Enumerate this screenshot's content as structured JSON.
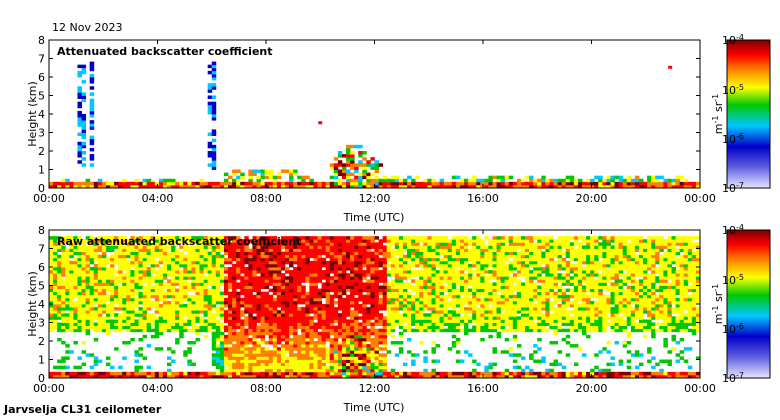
{
  "date": "12 Nov 2023",
  "station": "Jarvselja CL31 ceilometer",
  "colors": {
    "scale": [
      "#c8c8f0",
      "#0000c8",
      "#00c8ff",
      "#00c800",
      "#ffff00",
      "#ff8000",
      "#ff0000",
      "#780000"
    ]
  },
  "chart_data": [
    {
      "type": "heatmap",
      "title": "Attenuated backscatter coefficient",
      "xlabel": "Time (UTC)",
      "ylabel": "Height (km)",
      "xlim": [
        0,
        24
      ],
      "ylim": [
        0,
        8
      ],
      "x_ticks": [
        "00:00",
        "04:00",
        "08:00",
        "12:00",
        "16:00",
        "20:00",
        "00:00"
      ],
      "y_ticks": [
        "0",
        "1",
        "2",
        "3",
        "4",
        "5",
        "6",
        "7",
        "8"
      ],
      "colorbar": {
        "label": "m-1 sr-1",
        "label_base": "m",
        "label_exp1": "-1",
        "label_unit2": "sr",
        "label_exp2": "-1",
        "range": [
          1e-07,
          0.0001
        ],
        "tick_labels": [
          {
            "base": "10",
            "exp": "-4"
          },
          {
            "base": "10",
            "exp": "-5"
          },
          {
            "base": "10",
            "exp": "-6"
          },
          {
            "base": "10",
            "exp": "-7"
          }
        ]
      },
      "features": [
        {
          "name": "boundary layer",
          "time": [
            0,
            24
          ],
          "height_km": [
            0,
            0.4
          ],
          "level": "high"
        },
        {
          "name": "high thin cloud streaks",
          "times_h": [
            1.1,
            1.3,
            1.6,
            6.0
          ],
          "height_km": [
            1.0,
            6.8
          ],
          "level": "low"
        },
        {
          "name": "low cloud layer",
          "time": [
            6.5,
            9.5
          ],
          "height_km": [
            0.5,
            1.0
          ],
          "level": "medium"
        },
        {
          "name": "precipitation/cloud",
          "time": [
            10.5,
            12.3
          ],
          "height_km": [
            0,
            2.5
          ],
          "level": "high"
        },
        {
          "name": "isolated echo",
          "time": [
            10.0
          ],
          "height_km": [
            3.5
          ],
          "level": "high"
        },
        {
          "name": "isolated echo",
          "time": [
            22.9
          ],
          "height_km": [
            6.5
          ],
          "level": "high"
        }
      ]
    },
    {
      "type": "heatmap",
      "title": "Raw attenuated backscatter coefficient",
      "xlabel": "Time (UTC)",
      "ylabel": "Height (km)",
      "xlim": [
        0,
        24
      ],
      "ylim": [
        0,
        8
      ],
      "x_ticks": [
        "00:00",
        "04:00",
        "08:00",
        "12:00",
        "16:00",
        "20:00",
        "00:00"
      ],
      "y_ticks": [
        "0",
        "1",
        "2",
        "3",
        "4",
        "5",
        "6",
        "7",
        "8"
      ],
      "colorbar": {
        "label": "m-1 sr-1",
        "label_base": "m",
        "label_exp1": "-1",
        "label_unit2": "sr",
        "label_exp2": "-1",
        "range": [
          1e-07,
          0.0001
        ],
        "tick_labels": [
          {
            "base": "10",
            "exp": "-4"
          },
          {
            "base": "10",
            "exp": "-5"
          },
          {
            "base": "10",
            "exp": "-6"
          },
          {
            "base": "10",
            "exp": "-7"
          }
        ]
      },
      "features": [
        {
          "name": "noise field (green upper)",
          "time": [
            0,
            24
          ],
          "height_km": [
            3,
            7.7
          ],
          "level": "medium"
        },
        {
          "name": "noise field (blue lower)",
          "time": [
            0,
            24
          ],
          "height_km": [
            0.5,
            4
          ],
          "level": "low"
        },
        {
          "name": "elevated noise",
          "time": [
            6.5,
            12.5
          ],
          "height_km": [
            1,
            7.7
          ],
          "level": "high"
        },
        {
          "name": "surface layer",
          "time": [
            0,
            24
          ],
          "height_km": [
            0,
            0.4
          ],
          "level": "high"
        },
        {
          "name": "precipitation/cloud",
          "time": [
            10.5,
            12.3
          ],
          "height_km": [
            0,
            2.5
          ],
          "level": "high"
        }
      ]
    }
  ]
}
